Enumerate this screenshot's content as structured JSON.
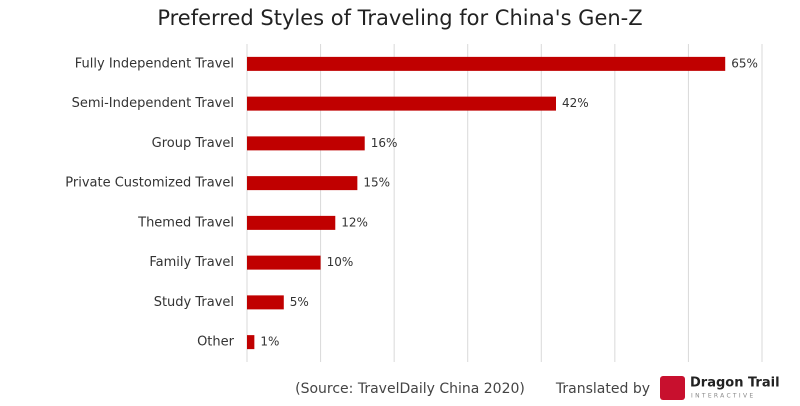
{
  "chart_data": {
    "type": "bar",
    "orientation": "horizontal",
    "title": "Preferred Styles of Traveling for China's Gen-Z",
    "categories": [
      "Fully Independent Travel",
      "Semi-Independent Travel",
      "Group Travel",
      "Private Customized Travel",
      "Themed Travel",
      "Family Travel",
      "Study Travel",
      "Other"
    ],
    "values": [
      65,
      42,
      16,
      15,
      12,
      10,
      5,
      1
    ],
    "value_labels": [
      "65%",
      "42%",
      "16%",
      "15%",
      "12%",
      "10%",
      "5%",
      "1%"
    ],
    "color": "#c00000",
    "xlim": [
      0,
      70
    ],
    "xticks": [
      0,
      10,
      20,
      30,
      40,
      50,
      60,
      70
    ],
    "grid": true,
    "source": "(Source: TravelDaily China 2020)",
    "credit": "Translated by",
    "logo_text": "Dragon Trail",
    "logo_subtext": "INTERACTIVE"
  }
}
